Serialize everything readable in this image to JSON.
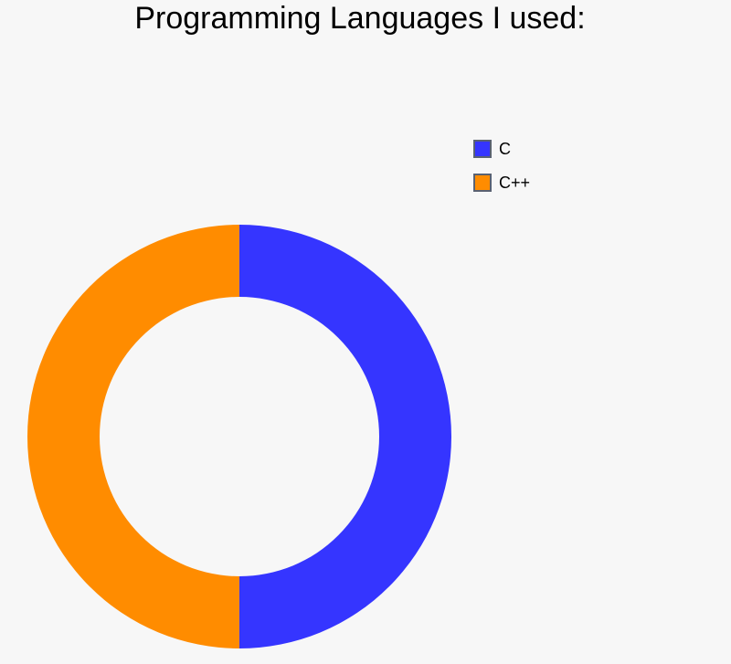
{
  "chart_data": {
    "type": "pie",
    "variant": "donut",
    "title": "Programming Languages I used:",
    "categories": [
      "C",
      "C++"
    ],
    "values": [
      50,
      50
    ],
    "colors": [
      "#3535ff",
      "#ff8c00"
    ],
    "legend_placement": "top-right",
    "grid": false
  }
}
